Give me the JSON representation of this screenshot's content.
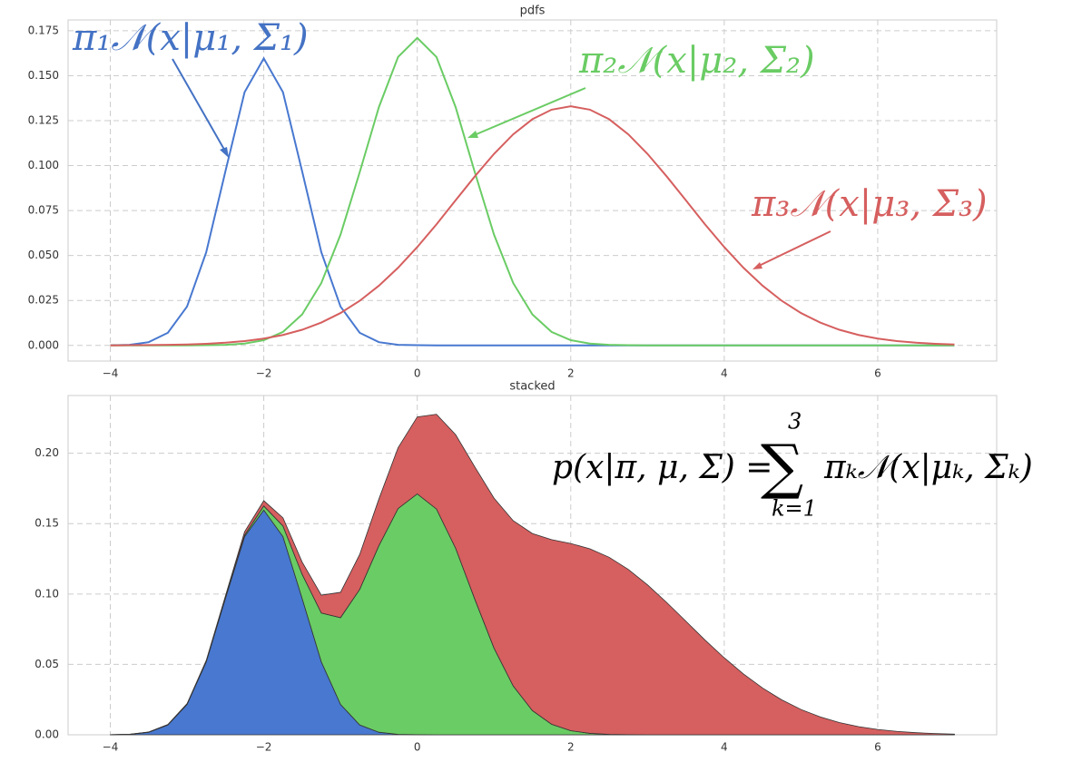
{
  "chart_data": [
    {
      "type": "line",
      "title": "pdfs",
      "x": [
        -4,
        -3.75,
        -3.5,
        -3.25,
        -3,
        -2.75,
        -2.5,
        -2.25,
        -2,
        -1.75,
        -1.5,
        -1.25,
        -1,
        -0.75,
        -0.5,
        -0.25,
        0,
        0.25,
        0.5,
        0.75,
        1,
        1.25,
        1.5,
        1.75,
        2,
        2.25,
        2.5,
        2.75,
        3,
        3.25,
        3.5,
        3.75,
        4,
        4.25,
        4.5,
        4.75,
        5,
        5.25,
        5.5,
        5.75,
        6,
        6.25,
        6.5,
        6.75,
        7
      ],
      "series": [
        {
          "color": "#4878d0",
          "values": [
            0.0001,
            0.0003,
            0.0018,
            0.007,
            0.0216,
            0.0518,
            0.0968,
            0.1408,
            0.1596,
            0.1408,
            0.0968,
            0.0518,
            0.0216,
            0.007,
            0.0018,
            0.0003,
            0.0001,
            0,
            0,
            0,
            0,
            0,
            0,
            0,
            0,
            0,
            0,
            0,
            0,
            0,
            0,
            0,
            0,
            0,
            0,
            0,
            0,
            0,
            0,
            0,
            0,
            0,
            0,
            0,
            0
          ]
        },
        {
          "color": "#6acc64",
          "values": [
            0,
            0,
            0,
            0,
            0,
            0.0001,
            0.0003,
            0.001,
            0.0029,
            0.0075,
            0.0172,
            0.0347,
            0.0616,
            0.0963,
            0.1325,
            0.1604,
            0.171,
            0.1604,
            0.1325,
            0.0963,
            0.0616,
            0.0347,
            0.0172,
            0.0075,
            0.0029,
            0.001,
            0.0003,
            0.0001,
            0,
            0,
            0,
            0,
            0,
            0,
            0,
            0,
            0,
            0,
            0,
            0,
            0,
            0,
            0,
            0,
            0
          ]
        },
        {
          "color": "#d65f5f",
          "values": [
            0,
            0.0001,
            0.0002,
            0.0003,
            0.0005,
            0.0009,
            0.0015,
            0.0024,
            0.0038,
            0.0058,
            0.0087,
            0.0127,
            0.018,
            0.0248,
            0.0332,
            0.0432,
            0.0547,
            0.0673,
            0.0807,
            0.094,
            0.1065,
            0.1174,
            0.1258,
            0.1311,
            0.133,
            0.1311,
            0.1258,
            0.1174,
            0.1065,
            0.094,
            0.0807,
            0.0673,
            0.0547,
            0.0432,
            0.0332,
            0.0248,
            0.018,
            0.0127,
            0.0087,
            0.0058,
            0.0038,
            0.0024,
            0.0015,
            0.0009,
            0.0005
          ]
        }
      ],
      "xlim": [
        -4.55,
        7.55
      ],
      "ylim": [
        -0.0087,
        0.181
      ],
      "xticks": [
        {
          "value": -4,
          "label": "−4"
        },
        {
          "value": -2,
          "label": "−2"
        },
        0,
        2,
        4,
        6
      ],
      "yticks": [
        {
          "value": 0,
          "label": "0.000"
        },
        {
          "value": 0.025,
          "label": "0.025"
        },
        {
          "value": 0.05,
          "label": "0.050"
        },
        {
          "value": 0.075,
          "label": "0.075"
        },
        {
          "value": 0.1,
          "label": "0.100"
        },
        {
          "value": 0.125,
          "label": "0.125"
        },
        {
          "value": 0.15,
          "label": "0.150"
        },
        {
          "value": 0.175,
          "label": "0.175"
        }
      ],
      "grid": true,
      "annotations": [
        {
          "text": "π₁𝒩(x|μ₁, Σ₁)",
          "color": "#4472c4"
        },
        {
          "text": "π₂𝒩(x|μ₂, Σ₂)",
          "color": "#6acc64"
        },
        {
          "text": "π₃𝒩(x|μ₃, Σ₃)",
          "color": "#d65f5f"
        }
      ]
    },
    {
      "type": "area",
      "stacked": true,
      "title": "stacked",
      "x": [
        -4,
        -3.75,
        -3.5,
        -3.25,
        -3,
        -2.75,
        -2.5,
        -2.25,
        -2,
        -1.75,
        -1.5,
        -1.25,
        -1,
        -0.75,
        -0.5,
        -0.25,
        0,
        0.25,
        0.5,
        0.75,
        1,
        1.25,
        1.5,
        1.75,
        2,
        2.25,
        2.5,
        2.75,
        3,
        3.25,
        3.5,
        3.75,
        4,
        4.25,
        4.5,
        4.75,
        5,
        5.25,
        5.5,
        5.75,
        6,
        6.25,
        6.5,
        6.75,
        7
      ],
      "series": [
        {
          "color": "#4878d0",
          "values": [
            0.0001,
            0.0003,
            0.0018,
            0.007,
            0.0216,
            0.0518,
            0.0968,
            0.1408,
            0.1596,
            0.1408,
            0.0968,
            0.0518,
            0.0216,
            0.007,
            0.0018,
            0.0003,
            0.0001,
            0,
            0,
            0,
            0,
            0,
            0,
            0,
            0,
            0,
            0,
            0,
            0,
            0,
            0,
            0,
            0,
            0,
            0,
            0,
            0,
            0,
            0,
            0,
            0,
            0,
            0,
            0,
            0
          ]
        },
        {
          "color": "#6acc64",
          "values": [
            0,
            0,
            0,
            0,
            0,
            0.0001,
            0.0003,
            0.001,
            0.0029,
            0.0075,
            0.0172,
            0.0347,
            0.0616,
            0.0963,
            0.1325,
            0.1604,
            0.171,
            0.1604,
            0.1325,
            0.0963,
            0.0616,
            0.0347,
            0.0172,
            0.0075,
            0.0029,
            0.001,
            0.0003,
            0.0001,
            0,
            0,
            0,
            0,
            0,
            0,
            0,
            0,
            0,
            0,
            0,
            0,
            0,
            0,
            0,
            0,
            0
          ]
        },
        {
          "color": "#d65f5f",
          "values": [
            0,
            0.0001,
            0.0002,
            0.0003,
            0.0005,
            0.0009,
            0.0015,
            0.0024,
            0.0038,
            0.0058,
            0.0087,
            0.0127,
            0.018,
            0.0248,
            0.0332,
            0.0432,
            0.0547,
            0.0673,
            0.0807,
            0.094,
            0.1065,
            0.1174,
            0.1258,
            0.1311,
            0.133,
            0.1311,
            0.1258,
            0.1174,
            0.1065,
            0.094,
            0.0807,
            0.0673,
            0.0547,
            0.0432,
            0.0332,
            0.0248,
            0.018,
            0.0127,
            0.0087,
            0.0058,
            0.0038,
            0.0024,
            0.0015,
            0.0009,
            0.0005
          ]
        }
      ],
      "xlim": [
        -4.55,
        7.55
      ],
      "ylim": [
        0,
        0.241
      ],
      "xticks": [
        {
          "value": -4,
          "label": "−4"
        },
        {
          "value": -2,
          "label": "−2"
        },
        0,
        2,
        4,
        6
      ],
      "yticks": [
        {
          "value": 0,
          "label": "0.00"
        },
        {
          "value": 0.05,
          "label": "0.05"
        },
        {
          "value": 0.1,
          "label": "0.10"
        },
        {
          "value": 0.15,
          "label": "0.15"
        },
        {
          "value": 0.2,
          "label": "0.20"
        }
      ],
      "grid": true,
      "annotations": [
        {
          "text": "p(x|π, μ, Σ) ="
        },
        {
          "text": "∑"
        },
        {
          "text": "3"
        },
        {
          "text": "k=1"
        },
        {
          "text": "πₖ𝒩(x|μₖ, Σₖ)"
        }
      ]
    }
  ]
}
